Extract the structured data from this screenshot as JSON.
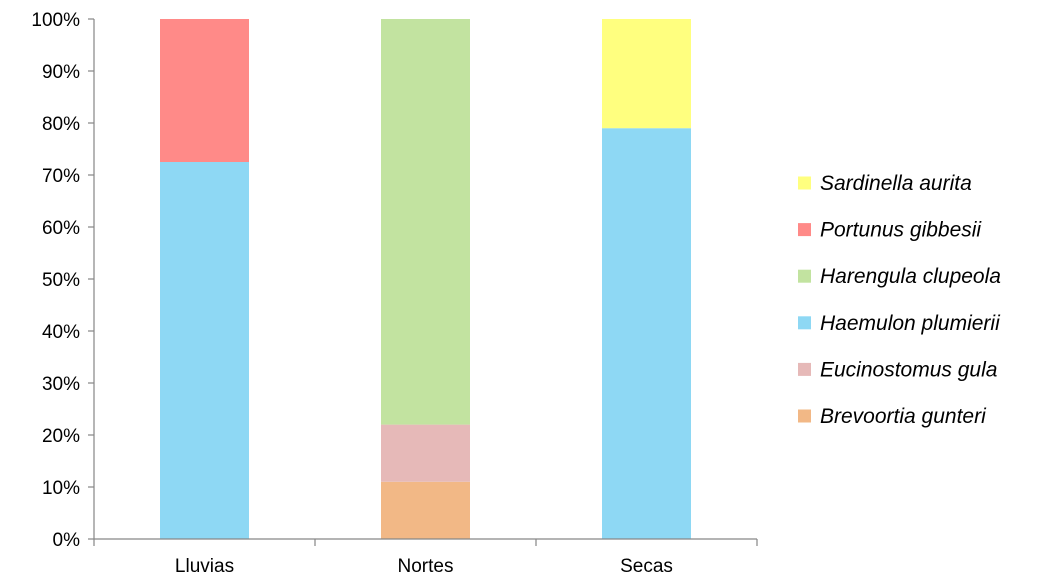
{
  "chart_data": {
    "type": "bar",
    "stacked": true,
    "categories": [
      "Lluvias",
      "Nortes",
      "Secas"
    ],
    "ylim": [
      0,
      100
    ],
    "yticks": [
      "0%",
      "10%",
      "20%",
      "30%",
      "40%",
      "50%",
      "60%",
      "70%",
      "80%",
      "90%",
      "100%"
    ],
    "ytick_values": [
      0,
      10,
      20,
      30,
      40,
      50,
      60,
      70,
      80,
      90,
      100
    ],
    "grid": false,
    "legend_position": "right",
    "series": [
      {
        "name": "Brevoortia gunteri",
        "color": "#F2B886",
        "values": [
          0,
          11,
          0
        ]
      },
      {
        "name": "Eucinostomus gula",
        "color": "#E6B9B8",
        "values": [
          0,
          11,
          0
        ]
      },
      {
        "name": "Haemulon plumierii",
        "color": "#8ED8F4",
        "values": [
          72.5,
          0,
          79
        ]
      },
      {
        "name": "Harengula clupeola",
        "color": "#C2E3A0",
        "values": [
          0,
          78,
          0
        ]
      },
      {
        "name": "Portunus gibbesii",
        "color": "#FF8A88",
        "values": [
          27.5,
          0,
          0
        ]
      },
      {
        "name": "Sardinella aurita",
        "color": "#FFFF7F",
        "values": [
          0,
          0,
          21
        ]
      }
    ]
  }
}
